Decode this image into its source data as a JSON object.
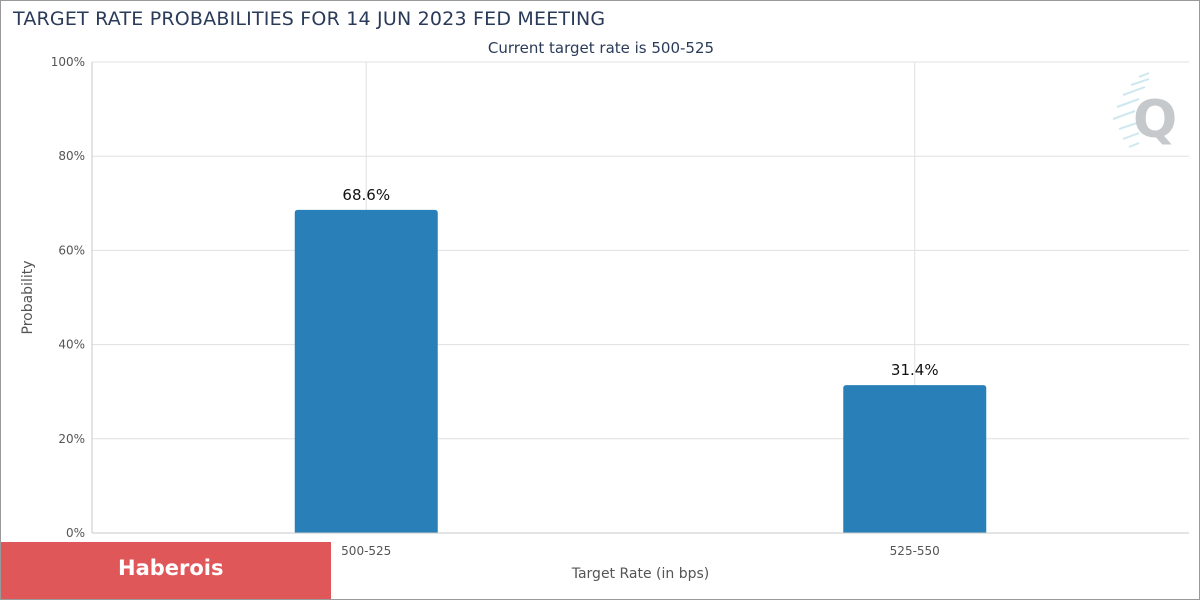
{
  "chart_data": {
    "type": "bar",
    "title": "TARGET RATE PROBABILITIES FOR 14 JUN 2023 FED MEETING",
    "subtitle": "Current target rate is 500-525",
    "xlabel": "Target Rate (in bps)",
    "ylabel": "Probability",
    "categories": [
      "500-525",
      "525-550"
    ],
    "values": [
      68.6,
      31.4
    ],
    "data_labels": [
      "68.6%",
      "31.4%"
    ],
    "ylim": [
      0,
      100
    ],
    "yticks": [
      0,
      20,
      40,
      60,
      80,
      100
    ],
    "ytick_labels": [
      "0%",
      "20%",
      "40%",
      "60%",
      "80%",
      "100%"
    ],
    "grid": true,
    "bar_color": "#2980b9"
  },
  "brand": {
    "label": "Haberois",
    "color": "#e0575a"
  },
  "watermark": {
    "icon": "q-logo-icon"
  }
}
